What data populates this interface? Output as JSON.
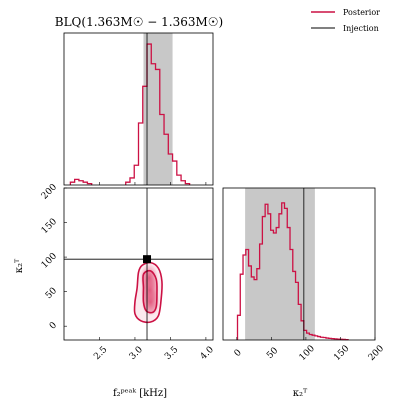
{
  "colors": {
    "posterior": "#cc1144",
    "posterior_fill": "#e04a72",
    "injection": "#000000",
    "band": "#c8c8c8",
    "axes": "#000000"
  },
  "chart_data": {
    "type": "corner",
    "title": "BLQ(1.363M☉ − 1.363M☉)",
    "legend": {
      "placement": "top-right",
      "items": [
        {
          "label": "Posterior",
          "style": "line",
          "color": "#cc1144"
        },
        {
          "label": "Injection",
          "style": "line",
          "color": "#000000"
        }
      ]
    },
    "parameters": [
      {
        "label": "f₂ᵖᵉᵃᵏ [kHz]",
        "range": [
          2.0,
          4.1
        ],
        "ticks": [
          2.5,
          3.0,
          3.5,
          4.0
        ],
        "tick_labels": [
          "2.5",
          "3.0",
          "3.5",
          "4.0"
        ],
        "injection": 3.17,
        "interval": [
          3.12,
          3.53
        ]
      },
      {
        "label": "κ₂ᵀ",
        "range": [
          -20,
          200
        ],
        "ticks": [
          0,
          50,
          100,
          150,
          200
        ],
        "tick_labels": [
          "0",
          "50",
          "100",
          "150",
          "200"
        ],
        "injection": 97,
        "interval": [
          12,
          113
        ]
      }
    ],
    "marginal_f2": {
      "x": [
        2.12,
        2.18,
        2.24,
        2.3,
        2.36,
        2.9,
        2.96,
        3.02,
        3.08,
        3.14,
        3.2,
        3.26,
        3.32,
        3.38,
        3.44,
        3.5,
        3.56,
        3.62,
        3.68,
        3.74
      ],
      "density": [
        0.02,
        0.04,
        0.03,
        0.02,
        0.01,
        0.02,
        0.05,
        0.14,
        0.44,
        0.7,
        1.0,
        0.86,
        0.82,
        0.5,
        0.36,
        0.22,
        0.17,
        0.07,
        0.03,
        0.01
      ],
      "bin_width": 0.06
    },
    "marginal_kappa": {
      "x": [
        3,
        7,
        11,
        15,
        19,
        23,
        27,
        31,
        35,
        39,
        43,
        47,
        51,
        55,
        59,
        63,
        67,
        71,
        75,
        79,
        83,
        87,
        91,
        95,
        99,
        103,
        107,
        111,
        115,
        119,
        123,
        127,
        131,
        135,
        139,
        143,
        147,
        151,
        155,
        159
      ],
      "density": [
        0.18,
        0.48,
        0.62,
        0.66,
        0.54,
        0.46,
        0.44,
        0.52,
        0.7,
        0.9,
        0.99,
        0.92,
        0.8,
        0.78,
        0.82,
        0.92,
        1.0,
        0.96,
        0.82,
        0.66,
        0.5,
        0.42,
        0.26,
        0.14,
        0.07,
        0.05,
        0.04,
        0.035,
        0.03,
        0.025,
        0.02,
        0.018,
        0.014,
        0.012,
        0.01,
        0.008,
        0.006,
        0.005,
        0.004,
        0.003
      ],
      "bin_width": 4
    },
    "joint": {
      "injection_point": [
        3.17,
        97
      ],
      "contours": [
        {
          "level": "outer",
          "points": [
            [
              3.05,
              78
            ],
            [
              3.1,
              88
            ],
            [
              3.22,
              92
            ],
            [
              3.33,
              84
            ],
            [
              3.38,
              65
            ],
            [
              3.37,
              40
            ],
            [
              3.33,
              15
            ],
            [
              3.22,
              6
            ],
            [
              3.08,
              8
            ],
            [
              3.0,
              18
            ],
            [
              3.0,
              35
            ],
            [
              3.03,
              55
            ]
          ]
        },
        {
          "level": "inner",
          "points": [
            [
              3.12,
              75
            ],
            [
              3.22,
              80
            ],
            [
              3.3,
              68
            ],
            [
              3.31,
              48
            ],
            [
              3.3,
              28
            ],
            [
              3.25,
              20
            ],
            [
              3.16,
              22
            ],
            [
              3.12,
              35
            ],
            [
              3.12,
              55
            ]
          ]
        }
      ],
      "density_peaks": [
        [
          3.21,
          52
        ],
        [
          3.22,
          35
        ],
        [
          3.2,
          70
        ]
      ]
    }
  }
}
